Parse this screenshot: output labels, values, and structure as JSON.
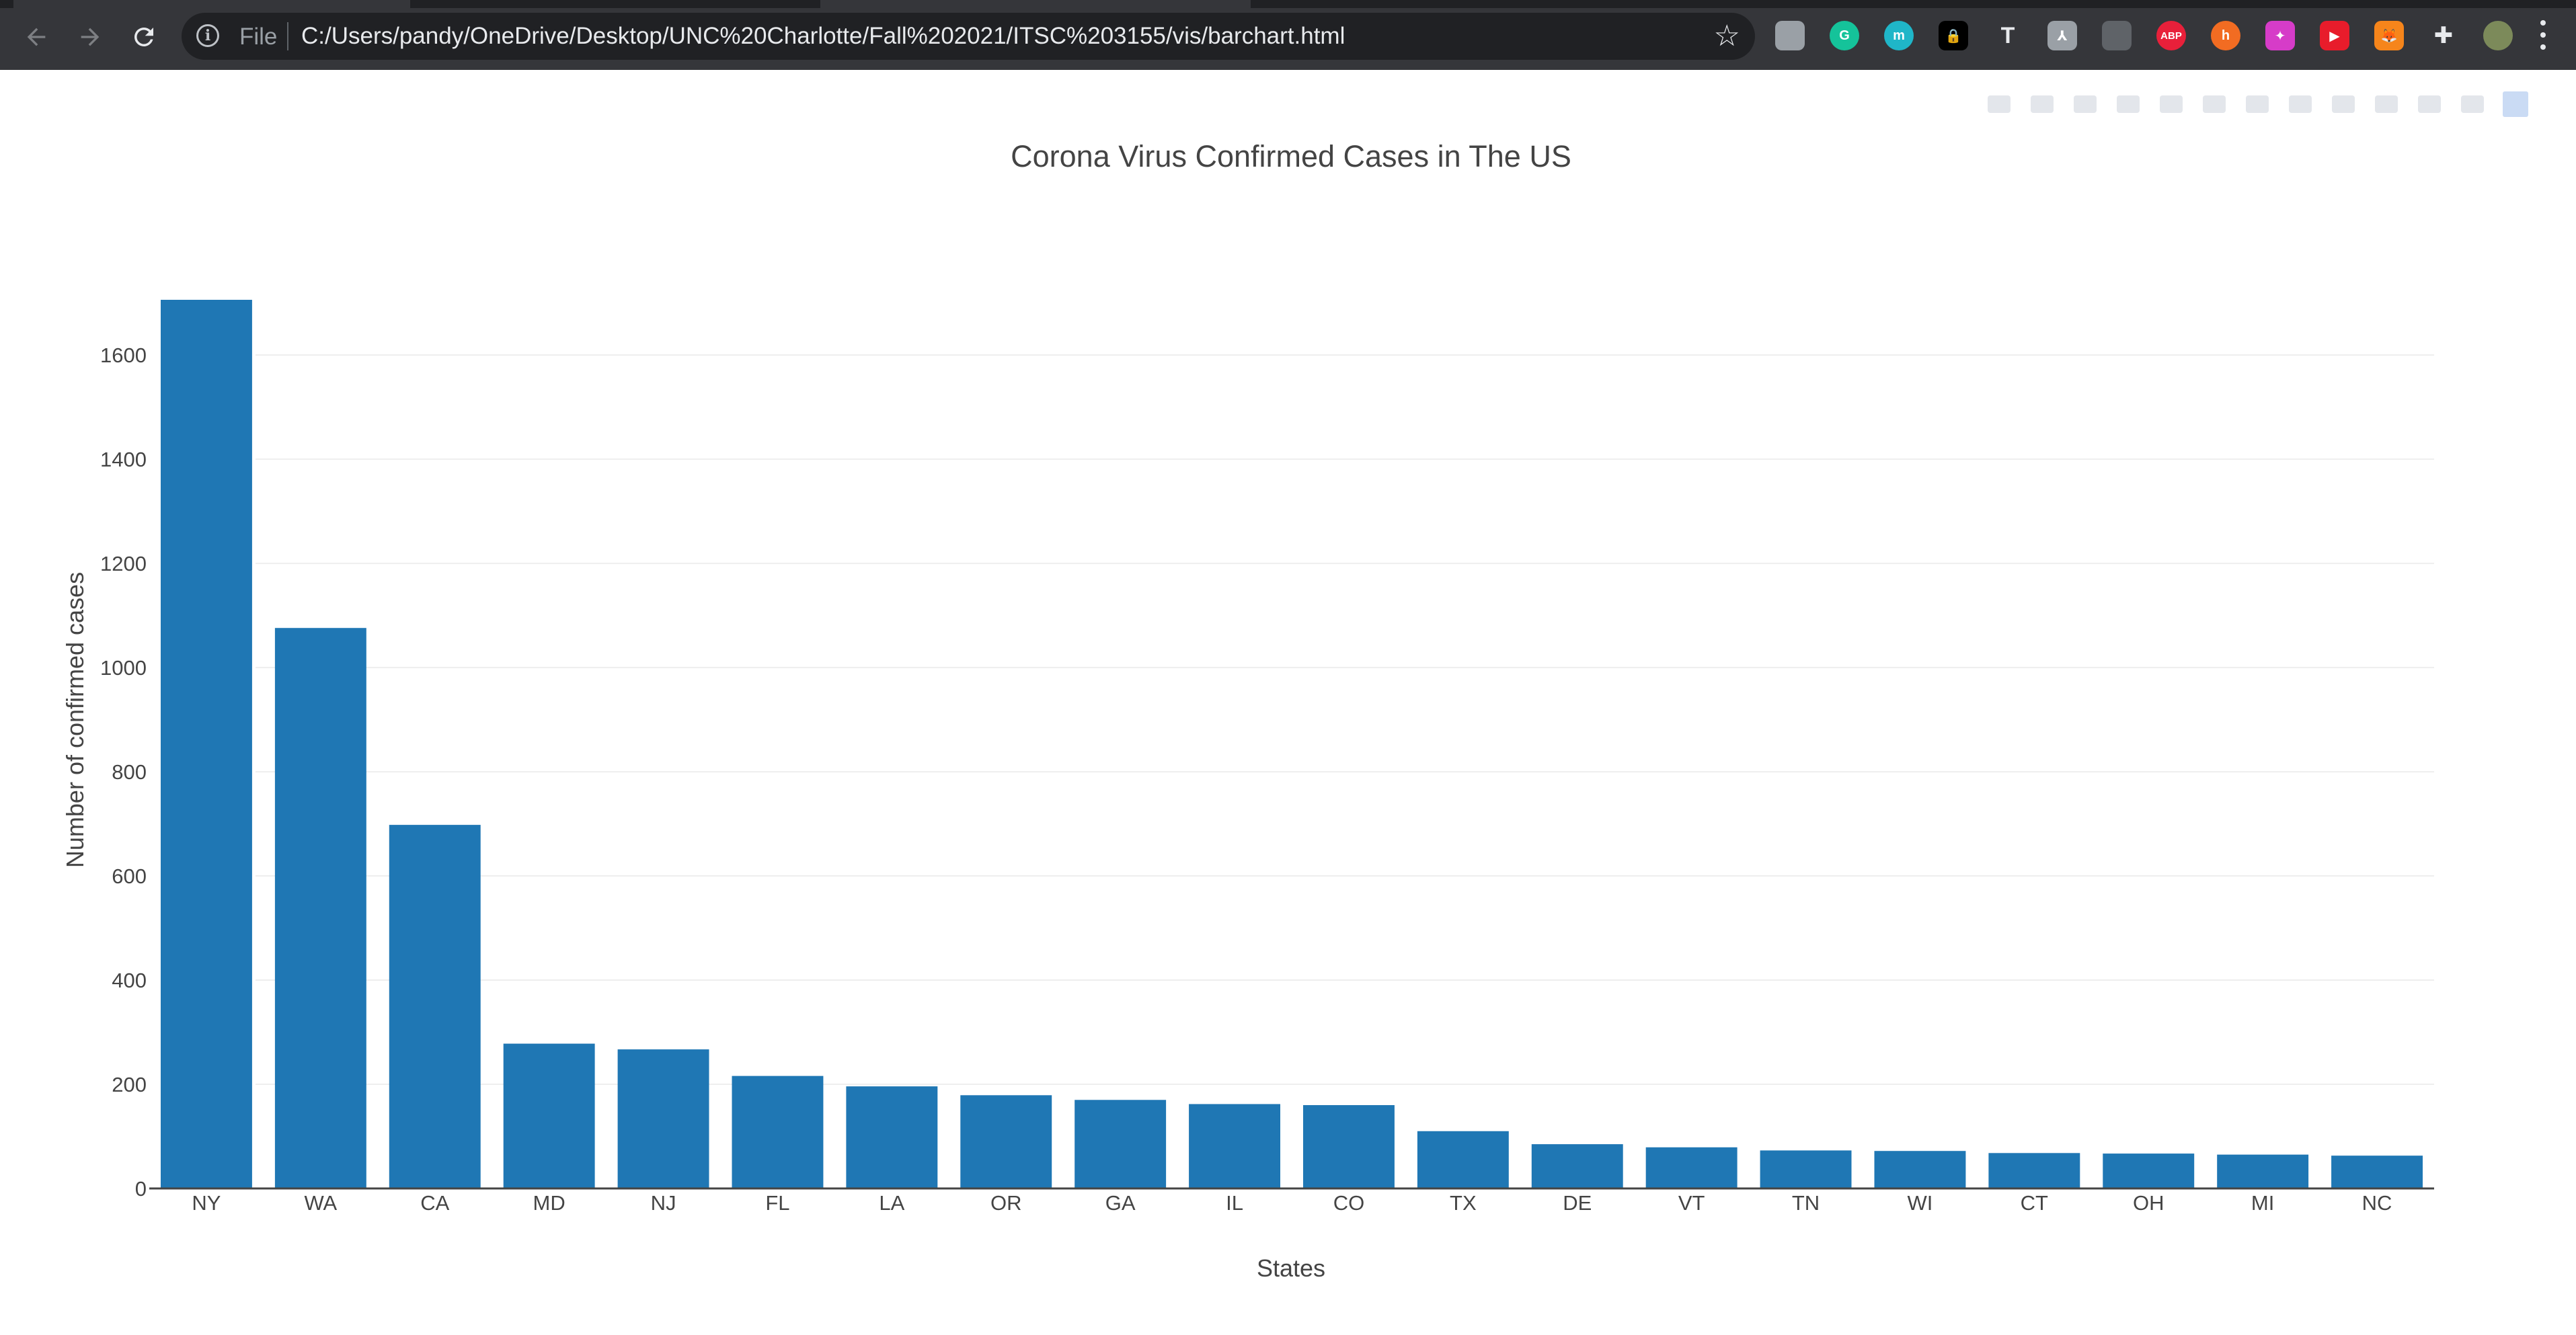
{
  "browser": {
    "nav": {
      "back_icon": "arrow-left-icon",
      "forward_icon": "arrow-right-icon",
      "reload_icon": "reload-icon"
    },
    "omnibox": {
      "info_icon": "info-icon",
      "scheme_label": "File",
      "url": "C:/Users/pandy/OneDrive/Desktop/UNC%20Charlotte/Fall%202021/ITSC%203155/vis/barchart.html",
      "bookmark_icon": "star-icon"
    },
    "extensions": [
      {
        "name": "extension-gray-icon",
        "glyph": "",
        "color": "#9aa0a6"
      },
      {
        "name": "grammarly-icon",
        "glyph": "G",
        "color": "#15c39a"
      },
      {
        "name": "mote-icon",
        "glyph": "m",
        "color": "#1fb6c8"
      },
      {
        "name": "lock-extension-icon",
        "glyph": "🔒",
        "color": "#000000"
      },
      {
        "name": "tex-icon",
        "glyph": "T",
        "color": "#e8eaed"
      },
      {
        "name": "pdf-icon",
        "glyph": "⅄",
        "color": "#9aa0a6"
      },
      {
        "name": "extension-dark-icon",
        "glyph": "",
        "color": "#5f6368"
      },
      {
        "name": "adblock-plus-icon",
        "glyph": "ABP",
        "color": "#e8203a"
      },
      {
        "name": "honey-icon",
        "glyph": "h",
        "color": "#f26c22"
      },
      {
        "name": "color-picker-icon",
        "glyph": "✦",
        "color": "#d63cc8"
      },
      {
        "name": "youtube-extension-icon",
        "glyph": "▶",
        "color": "#e81c2b"
      },
      {
        "name": "metamask-icon",
        "glyph": "🦊",
        "color": "#f6851b"
      },
      {
        "name": "extensions-puzzle-icon",
        "glyph": "✚",
        "color": "#e8eaed"
      },
      {
        "name": "profile-avatar",
        "glyph": "",
        "color": "#7c8a5a"
      }
    ],
    "menu_icon": "kebab-menu-icon"
  },
  "modebar": {
    "buttons": [
      "camera-icon",
      "zoom-icon",
      "pan-icon",
      "box-select-icon",
      "lasso-icon",
      "zoom-in-icon",
      "zoom-out-icon",
      "autoscale-icon",
      "reset-axes-icon",
      "spike-lines-icon",
      "hover-closest-icon",
      "hover-compare-icon",
      "plotly-logo-icon"
    ]
  },
  "chart_data": {
    "type": "bar",
    "title": "Corona Virus Confirmed Cases in The US",
    "xlabel": "States",
    "ylabel": "Number of confirmed cases",
    "categories": [
      "NY",
      "WA",
      "CA",
      "MD",
      "NJ",
      "FL",
      "LA",
      "OR",
      "GA",
      "IL",
      "CO",
      "TX",
      "DE",
      "VT",
      "TN",
      "WI",
      "CT",
      "OH",
      "MI",
      "NC"
    ],
    "values": [
      1706,
      1076,
      698,
      278,
      267,
      216,
      196,
      179,
      170,
      162,
      160,
      110,
      85,
      79,
      73,
      72,
      68,
      67,
      65,
      63
    ],
    "ylim": [
      0,
      1706
    ],
    "yticks": [
      0,
      200,
      400,
      600,
      800,
      1000,
      1200,
      1400,
      1600
    ],
    "grid": true,
    "color": "#1f77b4"
  }
}
